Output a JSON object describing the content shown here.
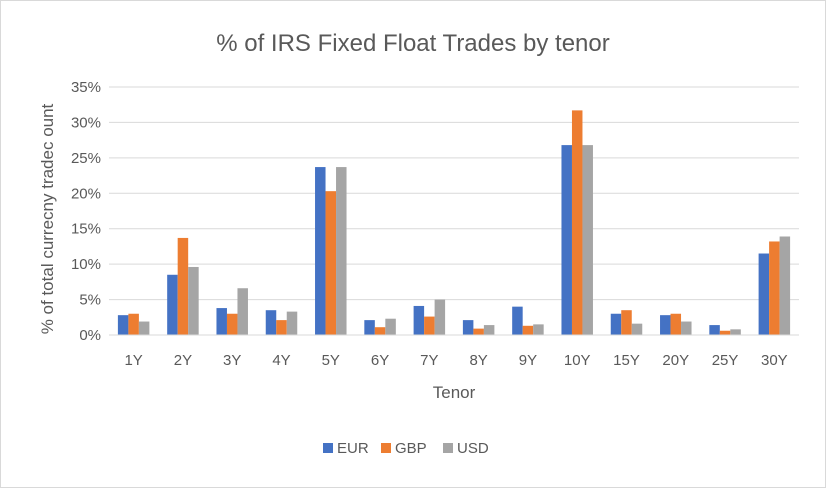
{
  "chart_data": {
    "type": "bar",
    "title": "% of IRS Fixed Float Trades by tenor",
    "xlabel": "Tenor",
    "ylabel": "% of total currecny tradec ount",
    "categories": [
      "1Y",
      "2Y",
      "3Y",
      "4Y",
      "5Y",
      "6Y",
      "7Y",
      "8Y",
      "9Y",
      "10Y",
      "15Y",
      "20Y",
      "25Y",
      "30Y"
    ],
    "series": [
      {
        "name": "EUR",
        "color": "#4472c4",
        "values": [
          2.8,
          8.5,
          3.8,
          3.5,
          23.7,
          2.1,
          4.1,
          2.1,
          4.0,
          26.8,
          3.0,
          2.8,
          1.4,
          11.5
        ]
      },
      {
        "name": "GBP",
        "color": "#ed7d31",
        "values": [
          3.0,
          13.7,
          3.0,
          2.1,
          20.3,
          1.1,
          2.6,
          0.9,
          1.3,
          31.7,
          3.5,
          3.0,
          0.6,
          13.2
        ]
      },
      {
        "name": "USD",
        "color": "#a5a5a5",
        "values": [
          1.9,
          9.6,
          6.6,
          3.3,
          23.7,
          2.3,
          5.0,
          1.4,
          1.5,
          26.8,
          1.6,
          1.9,
          0.8,
          13.9
        ]
      }
    ],
    "ylim": [
      0,
      35
    ],
    "yticks": [
      0,
      5,
      10,
      15,
      20,
      25,
      30,
      35
    ],
    "ytick_labels": [
      "0%",
      "5%",
      "10%",
      "15%",
      "20%",
      "25%",
      "30%",
      "35%"
    ],
    "grid": true,
    "legend_position": "bottom"
  }
}
